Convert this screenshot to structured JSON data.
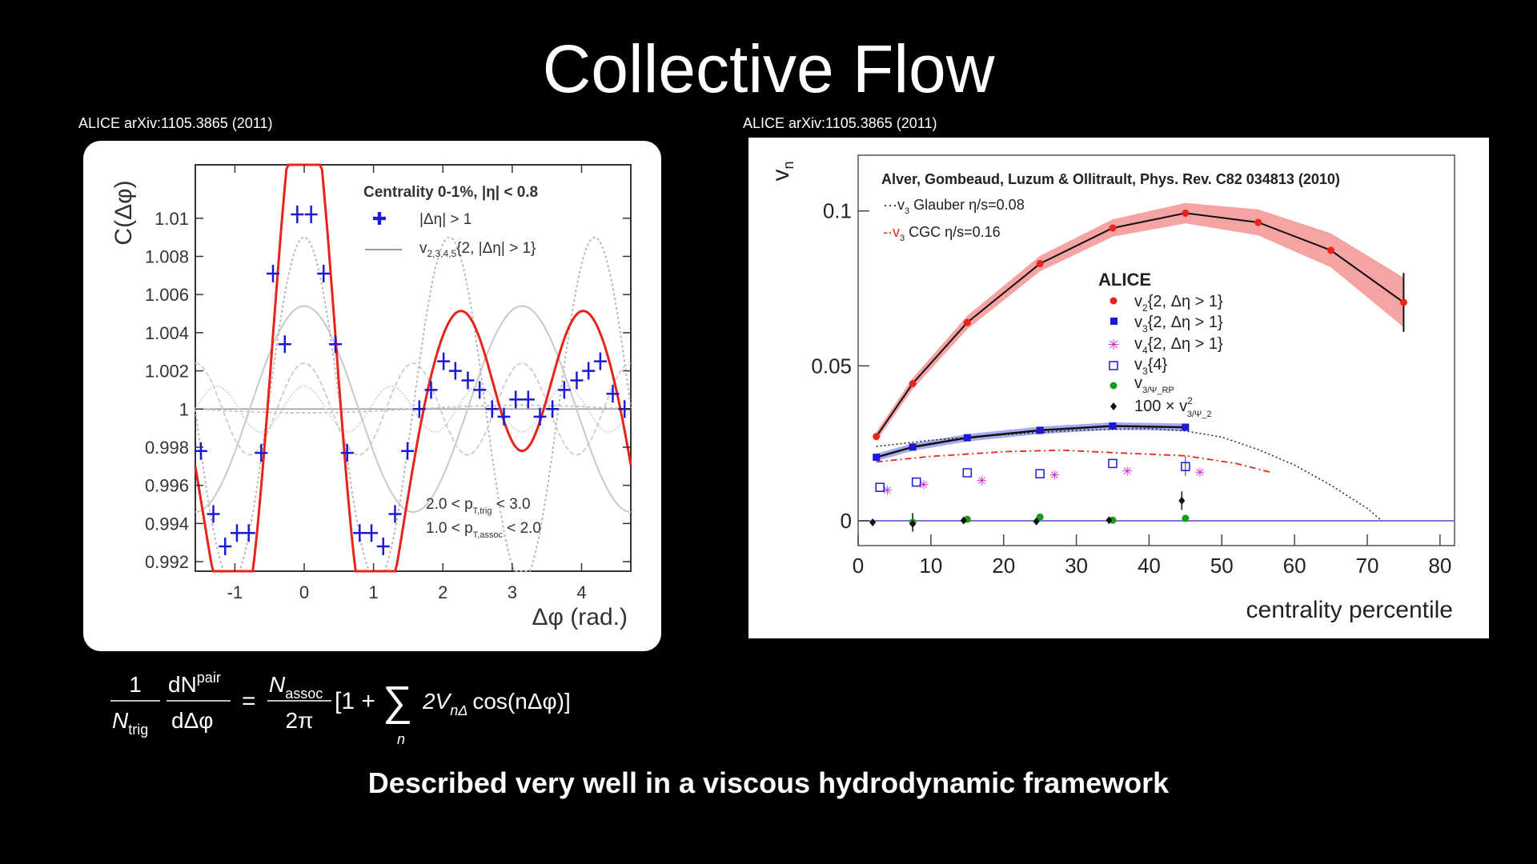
{
  "slide": {
    "title": "Collective Flow",
    "caption": "Described very well in a viscous hydrodynamic framework",
    "formula": {
      "lhs_num": "1",
      "lhs_den_base": "N",
      "lhs_den_sub": "trig",
      "dn_num": "dN",
      "dn_sup": "pair",
      "dn_den": "dΔφ",
      "eq": "=",
      "rhs_num_base": "N",
      "rhs_num_sub": "assoc",
      "rhs_den": "2π",
      "bracket_open": "[1 +",
      "sigma": "∑",
      "sigma_sub": "n",
      "term_a": "2V",
      "term_sub": "nΔ",
      "term_b": "cos(nΔφ)]"
    }
  },
  "citations": {
    "left": "ALICE  arXiv:1105.3865 (2011)",
    "right": "ALICE  arXiv:1105.3865 (2011)"
  },
  "colors": {
    "red": "#e8231c",
    "blue": "#1a1ad6",
    "magenta": "#d21ed2",
    "green": "#1a9a1a",
    "band": "#f6a3a3"
  },
  "chart_data": [
    {
      "type": "scatter",
      "ylabel": "C(Δφ)",
      "xlabel": "Δφ (rad.)",
      "xlim": [
        -1.57,
        4.71
      ],
      "ylim": [
        0.9915,
        1.0128
      ],
      "xticks": [
        -1,
        0,
        1,
        2,
        3,
        4
      ],
      "xticklabels": [
        "-1",
        "0",
        "1",
        "2",
        "3",
        "4"
      ],
      "yticks": [
        0.992,
        0.994,
        0.996,
        0.998,
        1.0,
        1.002,
        1.004,
        1.006,
        1.008,
        1.01
      ],
      "yticklabels": [
        "0.992",
        "0.994",
        "0.996",
        "0.998",
        "1",
        "1.002",
        "1.004",
        "1.006",
        "1.008",
        "1.01"
      ],
      "legend": {
        "title": "Centrality 0-1%, |η| < 0.8",
        "entry1": "|Δη| > 1",
        "entry2_base": "v",
        "entry2_sub": "2,3,4,5",
        "entry2_tail": "{2, |Δη| > 1}"
      },
      "annotation": {
        "line1_a": "2.0 < p",
        "line1_sub": "T,trig",
        "line1_b": " < 3.0",
        "line2_a": "1.0 < p",
        "line2_sub": "T,assoc",
        "line2_b": " < 2.0"
      },
      "fit": {
        "c0": 1.0,
        "v1": -0.0001,
        "v2": 0.0027,
        "v3": 0.0045,
        "v4": 0.0012,
        "v5": 0.0006
      },
      "series": [
        {
          "name": "|Δη| > 1",
          "x": [
            -1.49,
            -1.31,
            -1.14,
            -0.97,
            -0.8,
            -0.62,
            -0.45,
            -0.28,
            -0.1,
            0.1,
            0.28,
            0.45,
            0.62,
            0.8,
            0.97,
            1.14,
            1.31,
            1.49,
            1.66,
            1.83,
            2.01,
            2.18,
            2.36,
            2.53,
            2.71,
            2.88,
            3.05,
            3.23,
            3.4,
            3.58,
            3.75,
            3.93,
            4.1,
            4.27,
            4.45,
            4.62
          ],
          "y": [
            0.9978,
            0.9945,
            0.9928,
            0.9935,
            0.9935,
            0.9977,
            1.0071,
            1.0034,
            1.0102,
            1.0102,
            1.0071,
            1.0034,
            0.9977,
            0.9935,
            0.9935,
            0.9928,
            0.9945,
            0.9978,
            1.0,
            1.001,
            1.0025,
            1.002,
            1.0015,
            1.001,
            1.0,
            0.9996,
            1.0005,
            1.0005,
            0.9996,
            1.0,
            1.001,
            1.0015,
            1.002,
            1.0025,
            1.0008,
            1.0
          ]
        }
      ]
    },
    {
      "type": "line",
      "ylabel_base": "v",
      "ylabel_sub": "n",
      "xlabel": "centrality percentile",
      "xlim": [
        0,
        82
      ],
      "ylim": [
        -0.008,
        0.118
      ],
      "xticks": [
        0,
        10,
        20,
        30,
        40,
        50,
        60,
        70,
        80
      ],
      "xticklabels": [
        "0",
        "10",
        "20",
        "30",
        "40",
        "50",
        "60",
        "70",
        "80"
      ],
      "yticks": [
        0,
        0.05,
        0.1
      ],
      "yticklabels": [
        "0",
        "0.05",
        "0.1"
      ],
      "reference": "Alver, Gombeaud, Luzum & Ollitrault, Phys. Rev. C82 034813 (2010)",
      "theory_legend": [
        {
          "prefix": "···v",
          "sub": "3",
          "text": " Glauber η/s=0.08"
        },
        {
          "prefix": "-·v",
          "sub": "3",
          "text": " CGC η/s=0.16"
        }
      ],
      "legend_title": "ALICE",
      "legend": [
        {
          "base": "v",
          "sub": "2",
          "tail": "{2, Δη > 1}"
        },
        {
          "base": "v",
          "sub": "3",
          "tail": "{2, Δη > 1}"
        },
        {
          "base": "v",
          "sub": "4",
          "tail": "{2, Δη > 1}"
        },
        {
          "base": "v",
          "sub": "3",
          "tail": "{4}"
        },
        {
          "base": "v",
          "sub": "3/Ψ_RP",
          "tail": ""
        },
        {
          "base": "100 × v",
          "sub": "3/Ψ_2",
          "sup": "2",
          "tail": ""
        }
      ],
      "series": [
        {
          "name": "v2{2, Δη > 1}",
          "x": [
            2.5,
            7.5,
            15,
            25,
            35,
            45,
            55,
            65,
            75
          ],
          "y": [
            0.0272,
            0.0443,
            0.064,
            0.083,
            0.0945,
            0.0993,
            0.0963,
            0.0873,
            0.0705
          ],
          "band": [
            0.0015,
            0.0018,
            0.0022,
            0.0025,
            0.0028,
            0.0033,
            0.0042,
            0.0055,
            0.008
          ]
        },
        {
          "name": "v3{2, Δη > 1}",
          "x": [
            2.5,
            7.5,
            15,
            25,
            35,
            45
          ],
          "y": [
            0.0205,
            0.0238,
            0.0268,
            0.0292,
            0.0306,
            0.0302
          ]
        },
        {
          "name": "v4{2, Δη > 1}",
          "x": [
            4,
            9,
            17,
            27,
            37,
            47
          ],
          "y": [
            0.01,
            0.0118,
            0.013,
            0.0148,
            0.0162,
            0.0158
          ]
        },
        {
          "name": "v3{4}",
          "x": [
            3,
            8,
            15,
            25,
            35,
            45
          ],
          "y": [
            0.0108,
            0.0125,
            0.0155,
            0.0152,
            0.0185,
            0.0175
          ]
        },
        {
          "name": "v3/ΨRP",
          "x": [
            7.5,
            15,
            25,
            35,
            45
          ],
          "y": [
            -0.0005,
            0.0005,
            0.0012,
            0.0002,
            0.0008
          ]
        },
        {
          "name": "100 × v3/Ψ2^2",
          "x": [
            2,
            7.5,
            14.5,
            24.5,
            34.5,
            44.5
          ],
          "y": [
            -0.0005,
            -0.001,
            0.0001,
            -0.0002,
            0.0002,
            0.0065
          ]
        },
        {
          "name": "v3 Glauber η/s=0.08",
          "x": [
            2.5,
            10,
            20,
            30,
            40,
            45,
            50,
            55,
            60,
            65,
            70,
            72
          ],
          "y": [
            0.024,
            0.026,
            0.0278,
            0.0292,
            0.0298,
            0.029,
            0.027,
            0.023,
            0.018,
            0.0115,
            0.004,
            0.0
          ]
        },
        {
          "name": "v3 CGC η/s=0.16",
          "x": [
            2.5,
            10,
            20,
            28,
            35,
            45,
            52,
            57
          ],
          "y": [
            0.019,
            0.0208,
            0.0223,
            0.0228,
            0.022,
            0.021,
            0.0185,
            0.0155
          ]
        }
      ]
    }
  ]
}
